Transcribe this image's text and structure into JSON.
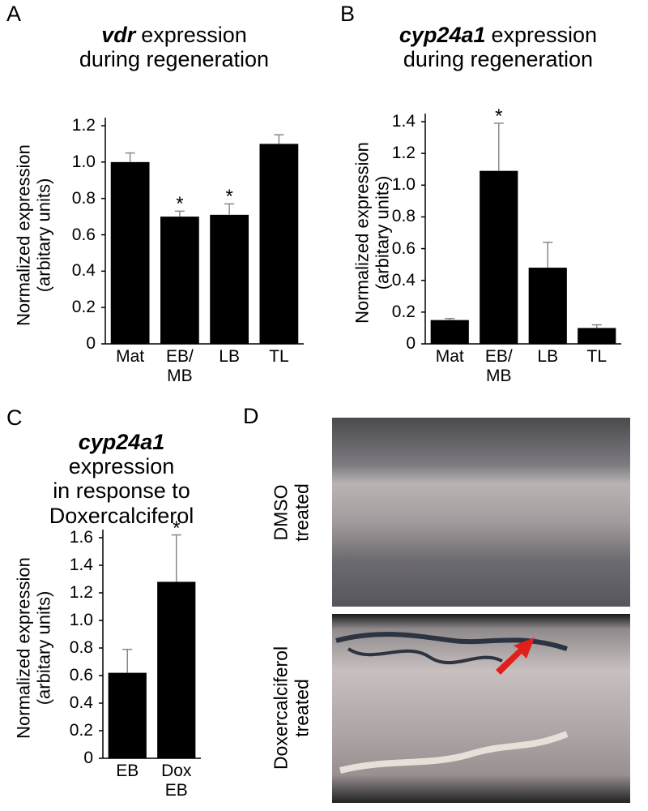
{
  "chart_data": [
    {
      "type": "bar",
      "panel_label": "A",
      "title_italic": "vdr",
      "title": "expression\nduring regeneration",
      "y_label": "Normalized expression\n(arbitary units)",
      "categories": [
        "Mat",
        "EB/\nMB",
        "LB",
        "TL"
      ],
      "values": [
        1.0,
        0.7,
        0.71,
        1.1
      ],
      "errors": [
        0.05,
        0.03,
        0.06,
        0.05
      ],
      "annotations": [
        null,
        "*",
        "*",
        null
      ],
      "color": "#000000",
      "ylim": [
        0,
        1.2
      ],
      "yticks": [
        0,
        0.2,
        0.4,
        0.6,
        0.8,
        {
          "value": 1,
          "label": "1.0"
        },
        1.2
      ]
    },
    {
      "type": "bar",
      "panel_label": "B",
      "title_italic": "cyp24a1",
      "title": "expression\nduring regeneration",
      "y_label": "Normalized expression\n(arbitary units)",
      "categories": [
        "Mat",
        "EB/\nMB",
        "LB",
        "TL"
      ],
      "values": [
        0.15,
        1.09,
        0.48,
        0.1
      ],
      "errors": [
        0.01,
        0.3,
        0.16,
        0.02
      ],
      "annotations": [
        null,
        "*",
        null,
        null
      ],
      "color": "#000000",
      "ylim": [
        0,
        1.4
      ],
      "yticks": [
        0,
        0.2,
        0.4,
        0.6,
        0.8,
        {
          "value": 1,
          "label": "1.0"
        },
        1.2,
        1.4
      ]
    },
    {
      "type": "bar",
      "panel_label": "C",
      "title_italic": "cyp24a1",
      "title": "expression\nin response to\nDoxercalciferol",
      "y_label": "Normalized expression\n(arbitary units)",
      "categories": [
        "EB",
        "Dox\nEB"
      ],
      "values": [
        0.62,
        1.28
      ],
      "errors": [
        0.17,
        0.34
      ],
      "annotations": [
        null,
        "*"
      ],
      "color": "#000000",
      "ylim": [
        0,
        1.6
      ],
      "yticks": [
        0,
        0.2,
        0.4,
        0.6,
        0.8,
        {
          "value": 1,
          "label": "1.0"
        },
        1.2,
        1.4,
        1.6
      ]
    }
  ],
  "figure_panel": {
    "label": "D",
    "images": [
      {
        "caption": "DMSO\ntreated"
      },
      {
        "caption": "Doxercalciferol\ntreated"
      }
    ]
  }
}
